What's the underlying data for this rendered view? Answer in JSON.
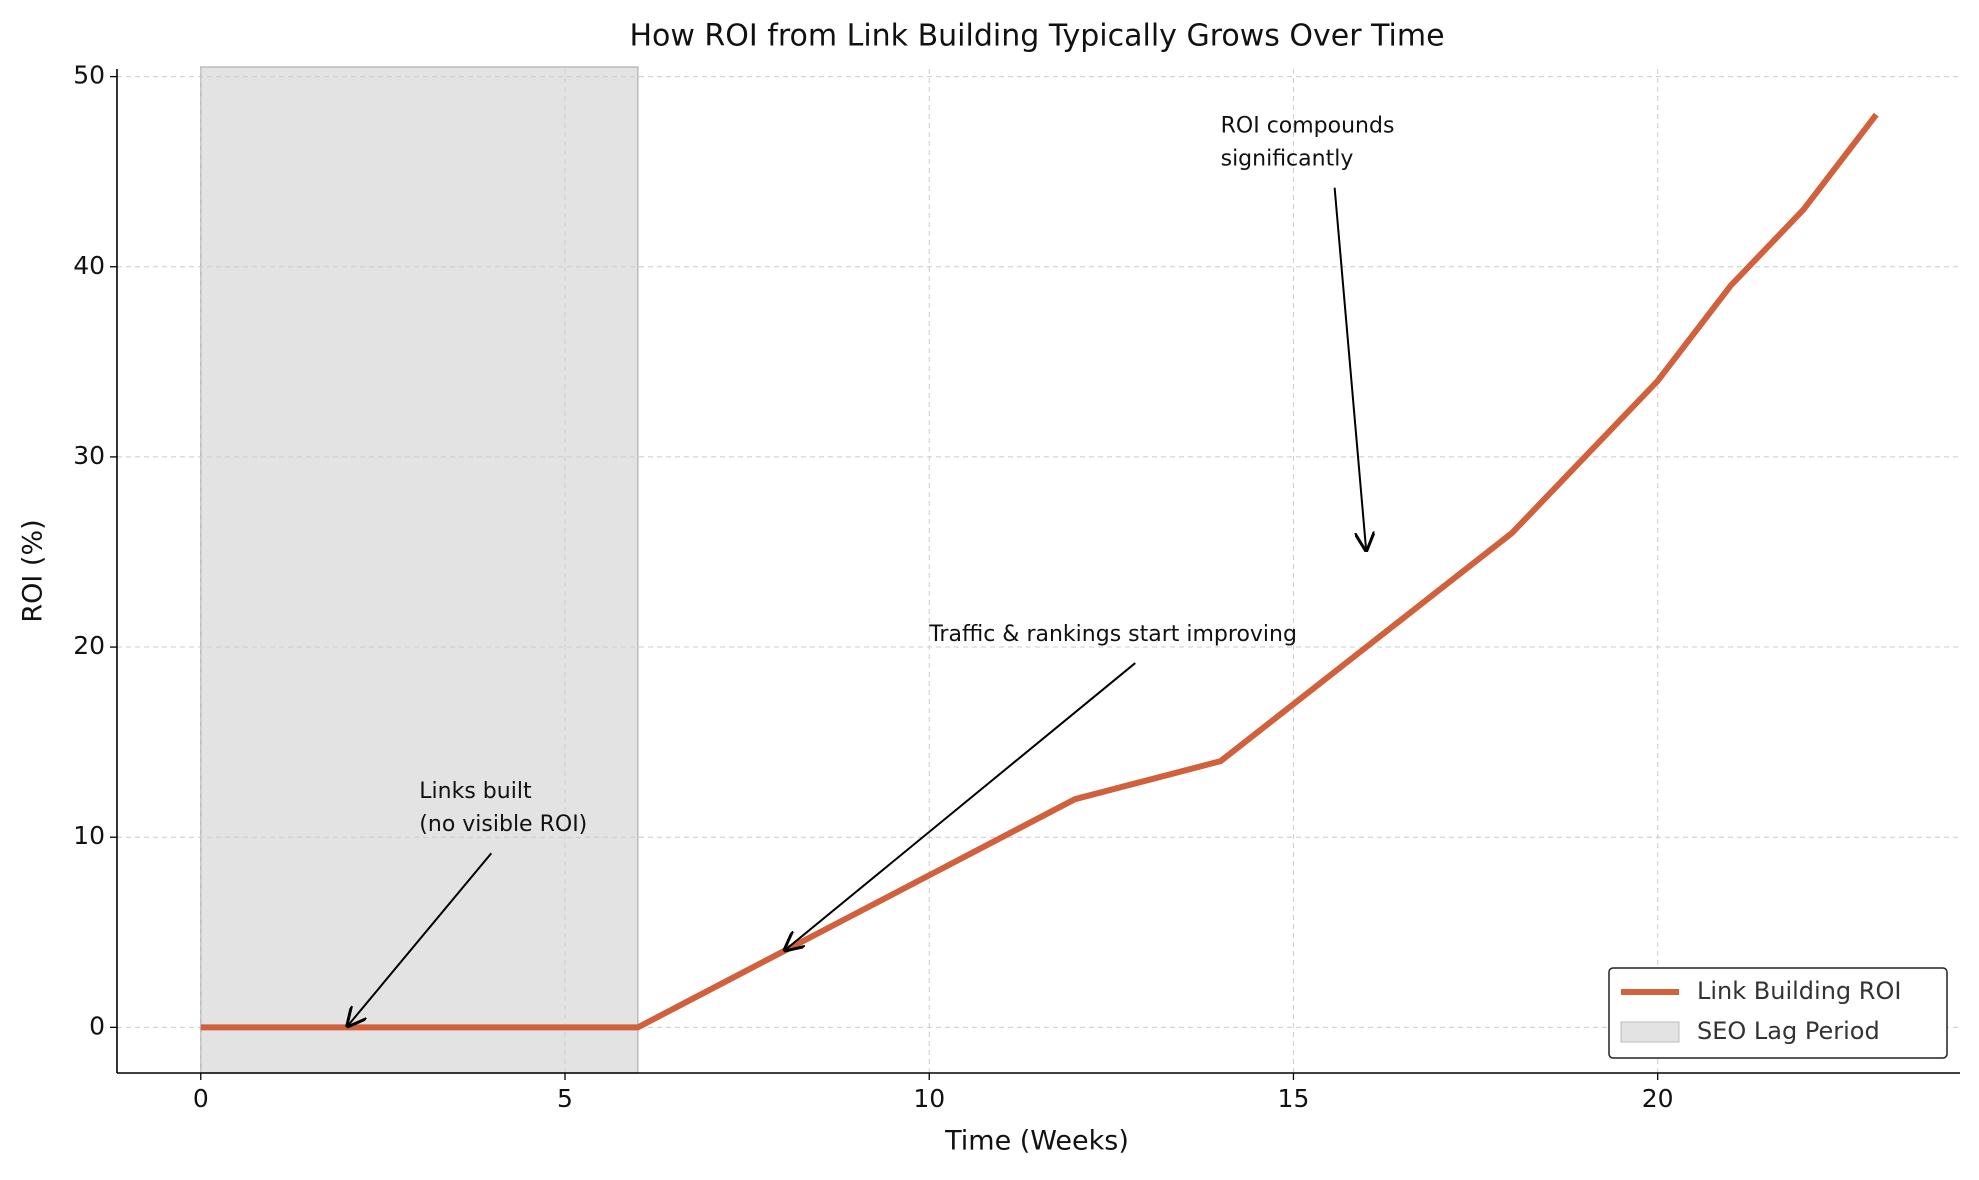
{
  "chart_data": {
    "type": "line",
    "title": "How ROI from Link Building Typically Grows Over Time",
    "x_label": "Time (Weeks)",
    "y_label": "ROI (%)",
    "x": [
      0,
      1,
      2,
      3,
      4,
      5,
      6,
      7,
      8,
      9,
      10,
      11,
      12,
      13,
      14,
      15,
      16,
      17,
      18,
      19,
      20,
      21,
      22,
      23
    ],
    "series": [
      {
        "name": "Link Building ROI",
        "color": "#d1603d",
        "values": [
          0,
          0,
          0,
          0,
          0,
          0,
          0,
          2,
          4,
          6,
          8,
          10,
          12,
          13,
          14,
          17,
          20,
          23,
          26,
          30,
          34,
          39,
          43,
          48
        ]
      }
    ],
    "span": {
      "start": 0,
      "end": 6,
      "label": "SEO Lag Period",
      "color": "#e3e3e3"
    },
    "annotations": [
      {
        "text": [
          "Links built",
          "(no visible ROI)"
        ],
        "xy": [
          2,
          0
        ],
        "xytext": [
          3,
          10
        ]
      },
      {
        "text": [
          "Traffic & rankings start improving"
        ],
        "xy": [
          8,
          4
        ],
        "xytext": [
          10,
          20
        ]
      },
      {
        "text": [
          "ROI compounds",
          "significantly"
        ],
        "xy": [
          16,
          25
        ],
        "xytext": [
          14,
          45
        ]
      }
    ],
    "xlim": [
      -1.15,
      24.15
    ],
    "ylim": [
      -2.4,
      50.4
    ],
    "xticks": [
      0,
      5,
      10,
      15,
      20
    ],
    "yticks": [
      0,
      10,
      20,
      30,
      40,
      50
    ],
    "grid": true,
    "legend": "lower right"
  }
}
